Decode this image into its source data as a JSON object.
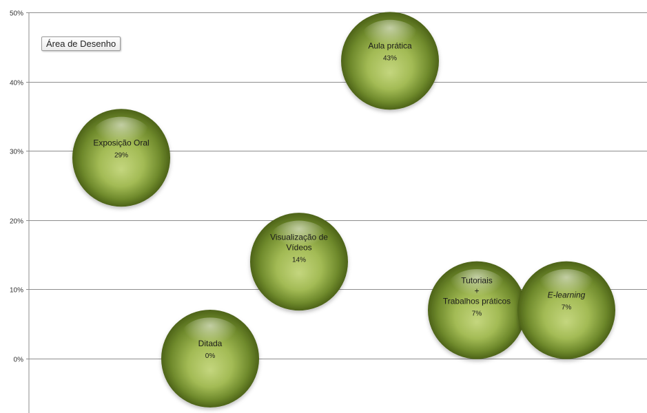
{
  "chart_area_tag": "Área de Desenho",
  "chart_data": {
    "type": "bubble",
    "title": "",
    "xlabel": "",
    "ylabel": "",
    "ylim": [
      -0.08,
      0.5
    ],
    "yticks": [
      "0%",
      "10%",
      "20%",
      "30%",
      "40%",
      "50%"
    ],
    "ytick_values": [
      0,
      0.1,
      0.2,
      0.3,
      0.4,
      0.5
    ],
    "grid": true,
    "bubble_color": "#9ab34a",
    "points": [
      {
        "label_lines": [
          "Exposição Oral"
        ],
        "value_label": "29%",
        "x": 1,
        "y": 0.29,
        "italic": false
      },
      {
        "label_lines": [
          "Ditada"
        ],
        "value_label": "0%",
        "x": 2,
        "y": 0.0,
        "italic": false
      },
      {
        "label_lines": [
          "Visualização de",
          "Vídeos"
        ],
        "value_label": "14%",
        "x": 3,
        "y": 0.14,
        "italic": false
      },
      {
        "label_lines": [
          "Aula prática"
        ],
        "value_label": "43%",
        "x": 4,
        "y": 0.43,
        "italic": false
      },
      {
        "label_lines": [
          "Tutoriais",
          "+",
          "Trabalhos práticos"
        ],
        "value_label": "7%",
        "x": 5,
        "y": 0.07,
        "italic": false
      },
      {
        "label_lines": [
          "E-learning"
        ],
        "value_label": "7%",
        "x": 6,
        "y": 0.07,
        "italic": true
      }
    ]
  }
}
